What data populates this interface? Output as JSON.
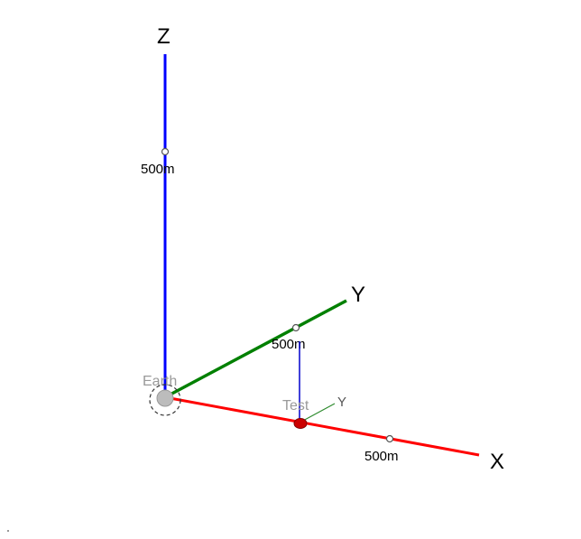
{
  "scene": {
    "axes": {
      "x": {
        "label": "X",
        "tick_label": "500m",
        "color": "#ff0000"
      },
      "y": {
        "label": "Y",
        "tick_label": "500m",
        "color": "#008000"
      },
      "z": {
        "label": "Z",
        "tick_label": "500m",
        "color": "#0000ff"
      }
    },
    "origin": {
      "label": "Earth",
      "color": "#b8b8b8"
    },
    "object": {
      "label": "Test",
      "local_axis_label": "Y",
      "marker_color": "#cc0000",
      "stem_color": "#0000cc",
      "local_axis_color": "#2e8b2e"
    }
  }
}
